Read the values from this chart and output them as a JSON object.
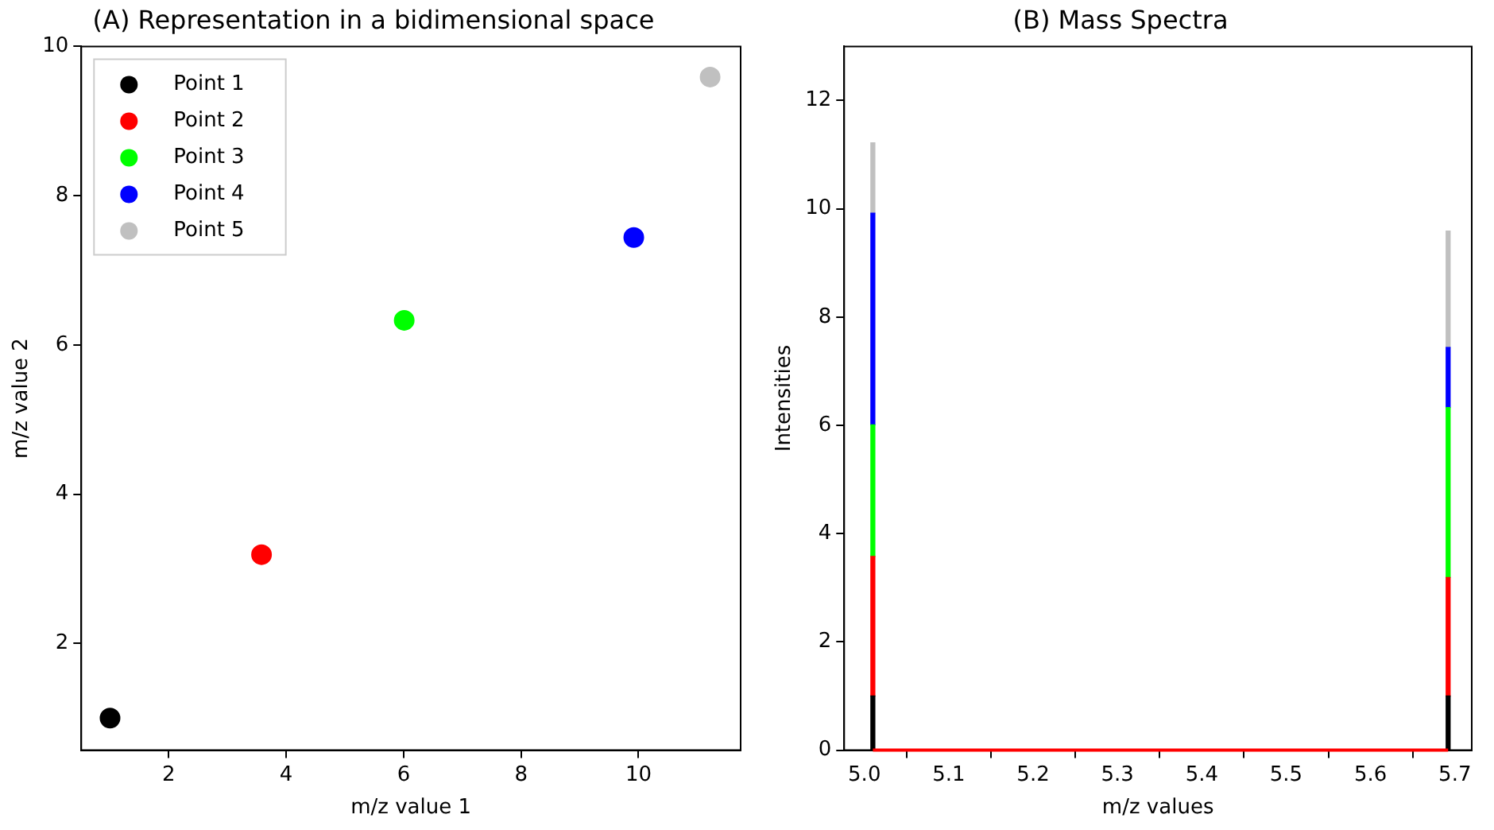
{
  "chart_data": [
    {
      "type": "scatter",
      "title": "(A) Representation in a bidimensional space",
      "xlabel": "m/z value 1",
      "ylabel": "m/z value 2",
      "xlim": [
        0.51,
        11.74
      ],
      "ylim": [
        0.57,
        10
      ],
      "xticks": [
        2,
        4,
        6,
        8,
        10
      ],
      "yticks": [
        2,
        4,
        6,
        8,
        10
      ],
      "grid": false,
      "legend": "top left",
      "marker": "circle",
      "series": [
        {
          "name": "Point 1",
          "color": "#000000",
          "x": [
            1.0
          ],
          "values": [
            1.0
          ]
        },
        {
          "name": "Point 2",
          "color": "#ff0000",
          "x": [
            3.58
          ],
          "values": [
            3.19
          ]
        },
        {
          "name": "Point 3",
          "color": "#00ff00",
          "x": [
            6.01
          ],
          "values": [
            6.33
          ]
        },
        {
          "name": "Point 4",
          "color": "#0000ff",
          "x": [
            9.92
          ],
          "values": [
            7.44
          ]
        },
        {
          "name": "Point 5",
          "color": "#c0c0c0",
          "x": [
            11.22
          ],
          "values": [
            9.59
          ]
        }
      ]
    },
    {
      "type": "bar",
      "title": "(B) Mass Spectra",
      "xlabel": "m/z values",
      "ylabel": "Intensities",
      "xlim": [
        4.976,
        5.72
      ],
      "ylim": [
        0,
        13
      ],
      "xticks": [
        {
          "value": 5.0,
          "label": "5.0"
        },
        5.1,
        5.2,
        5.3,
        5.4,
        5.5,
        5.6,
        {
          "value": 5.7,
          "label": "5.7"
        }
      ],
      "yticks": [
        0,
        2,
        4,
        6,
        8,
        10,
        12
      ],
      "grid": false,
      "legend": false,
      "stacked": true,
      "series": [
        {
          "type": "bar",
          "color": "#000000",
          "x": [
            5.01,
            5.692
          ],
          "values": [
            1.0,
            1.0
          ]
        },
        {
          "type": "bar",
          "color": "#ff0000",
          "x": [
            5.01,
            5.692
          ],
          "values": [
            2.58,
            2.19
          ]
        },
        {
          "type": "bar",
          "color": "#00ff00",
          "x": [
            5.01,
            5.692
          ],
          "values": [
            2.43,
            3.14
          ]
        },
        {
          "type": "bar",
          "color": "#0000ff",
          "x": [
            5.01,
            5.692
          ],
          "values": [
            3.91,
            1.11
          ]
        },
        {
          "type": "bar",
          "color": "#c0c0c0",
          "x": [
            5.01,
            5.692
          ],
          "values": [
            1.3,
            2.15
          ]
        },
        {
          "type": "line",
          "color": "#ff0000",
          "x": [
            5.01,
            5.692
          ],
          "values": [
            0,
            0
          ],
          "marker": "none",
          "line_style": "solid"
        }
      ]
    }
  ]
}
